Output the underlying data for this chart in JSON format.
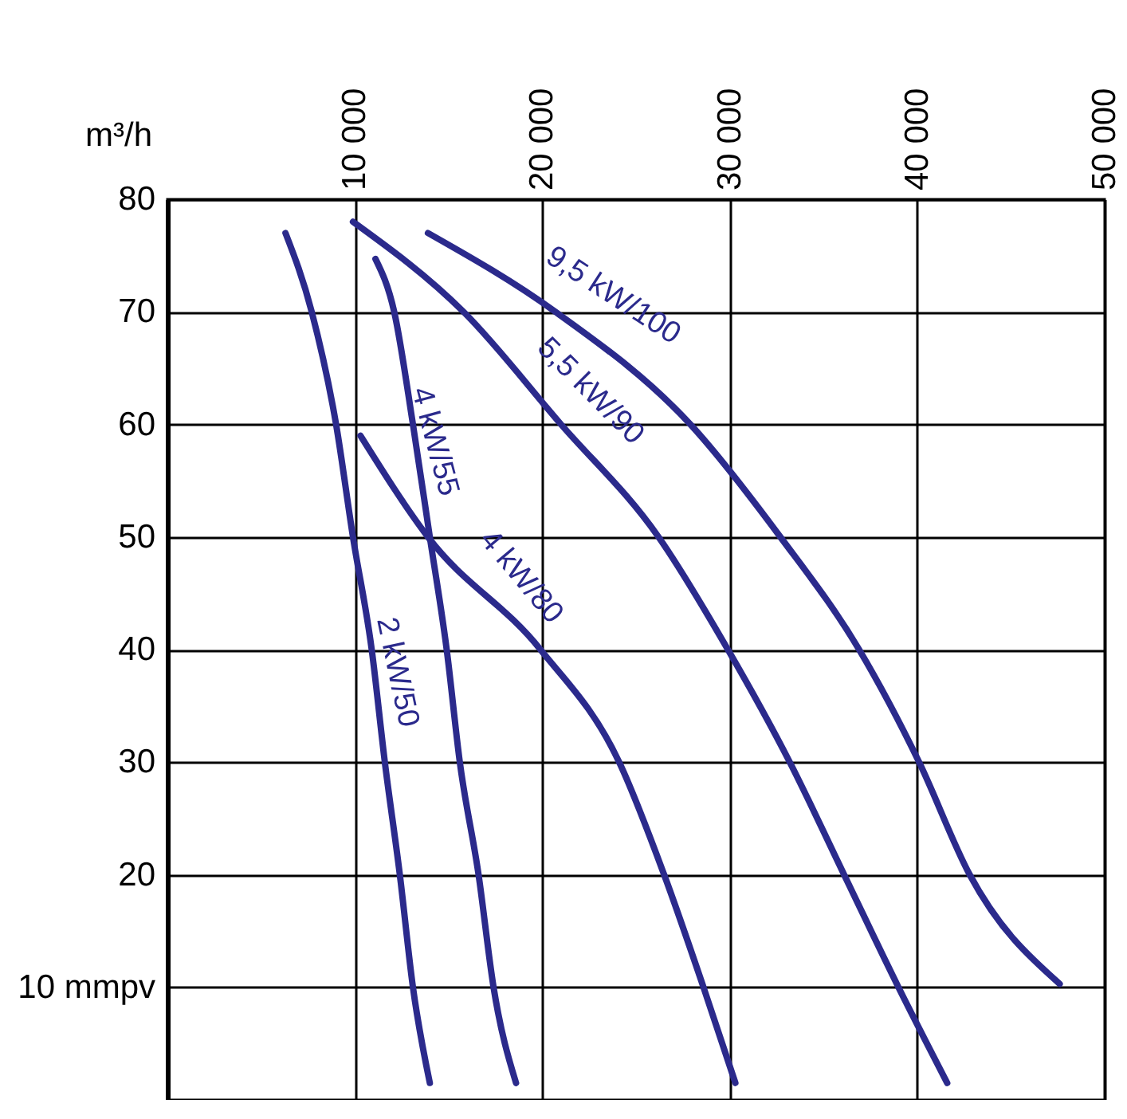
{
  "chart_data": {
    "type": "line",
    "xlabel": "m³/h",
    "grid": true,
    "marker": "none",
    "xlim": [
      0,
      50000
    ],
    "xticks": [
      {
        "value": 10000,
        "label": "10 000"
      },
      {
        "value": 20000,
        "label": "20 000"
      },
      {
        "value": 30000,
        "label": "30 000"
      },
      {
        "value": 40000,
        "label": "40 000"
      },
      {
        "value": 50000,
        "label": "50 000"
      }
    ],
    "ylim": [
      0,
      80
    ],
    "yticks": [
      {
        "value": 10,
        "label": "10 mmpv"
      },
      20,
      30,
      40,
      50,
      60,
      70,
      80
    ],
    "series": [
      {
        "name": "2 kW/50",
        "color": "#2b2a8c",
        "x": [
          6300,
          7700,
          9000,
          9900,
          10900,
          11600,
          12400,
          13100,
          14000
        ],
        "values": [
          77,
          70,
          60,
          50,
          40,
          30,
          20,
          10,
          1.5
        ]
      },
      {
        "name": "4 kW/55",
        "color": "#2b2a8c",
        "x": [
          11100,
          12100,
          13100,
          14000,
          14900,
          15600,
          16600,
          17400,
          18600
        ],
        "values": [
          74.7,
          70,
          60,
          50,
          40,
          30,
          20,
          10,
          1.5
        ]
      },
      {
        "name": "4 kW/80",
        "color": "#2b2a8c",
        "x": [
          10300,
          13900,
          19900,
          24100,
          26500,
          28600,
          30300
        ],
        "values": [
          59,
          50,
          40,
          30,
          20,
          10,
          1.5
        ]
      },
      {
        "name": "5,5 kW/90",
        "color": "#2b2a8c",
        "x": [
          9900,
          15800,
          21000,
          26200,
          29900,
          33200,
          36100,
          39000,
          41600
        ],
        "values": [
          78,
          70,
          60,
          50,
          40,
          30,
          20,
          10,
          1.5
        ]
      },
      {
        "name": "9,5 kW/100",
        "color": "#2b2a8c",
        "x": [
          13900,
          20700,
          27900,
          32700,
          36900,
          40100,
          42800,
          47600
        ],
        "values": [
          77,
          70,
          60,
          50,
          40,
          30,
          20,
          10.3
        ]
      }
    ]
  }
}
